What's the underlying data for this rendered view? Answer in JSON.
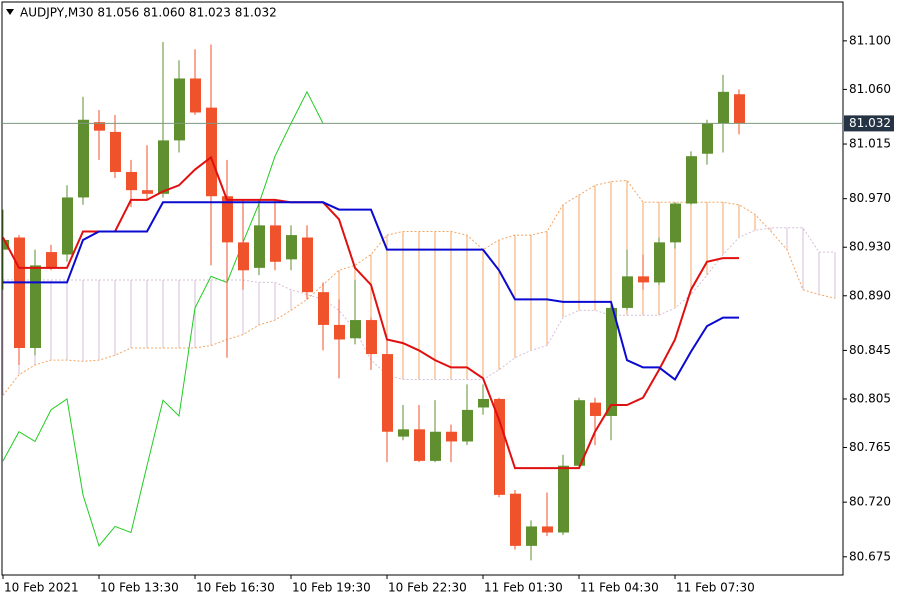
{
  "chart_data": {
    "type": "candlestick",
    "title": "AUDJPY,M30  81.056 81.060 81.023 81.032",
    "categories": [
      "10 Feb 2021",
      null,
      null,
      null,
      null,
      null,
      "10 Feb 13:30",
      null,
      null,
      null,
      null,
      null,
      "10 Feb 16:30",
      null,
      null,
      null,
      null,
      null,
      "10 Feb 19:30",
      null,
      null,
      null,
      null,
      null,
      "10 Feb 22:30",
      null,
      null,
      null,
      null,
      null,
      "11 Feb 01:30",
      null,
      null,
      null,
      null,
      null,
      "11 Feb 04:30",
      null,
      null,
      null,
      null,
      null,
      "11 Feb 07:30",
      null,
      null,
      null,
      null,
      null,
      null,
      null,
      null,
      null,
      null
    ],
    "open": [
      80.928,
      80.938,
      80.847,
      80.926,
      80.924,
      80.971,
      81.033,
      81.025,
      80.992,
      80.977,
      80.974,
      81.018,
      81.069,
      81.045,
      80.972,
      80.934,
      80.913,
      80.948,
      80.92,
      80.938,
      80.893,
      80.866,
      80.855,
      80.87,
      80.842,
      80.774,
      80.78,
      80.754,
      80.778,
      80.77,
      80.798,
      80.805,
      80.727,
      80.684,
      80.7,
      80.695,
      80.75,
      80.802,
      80.791,
      80.88,
      80.906,
      80.901,
      80.934,
      80.966,
      81.007,
      81.032,
      81.056,
      null,
      null,
      null,
      null,
      null,
      null
    ],
    "high": [
      80.961,
      80.94,
      80.928,
      80.932,
      80.981,
      81.054,
      81.043,
      81.039,
      81.002,
      81.014,
      81.099,
      81.084,
      81.093,
      81.097,
      81.002,
      80.969,
      80.969,
      80.969,
      80.948,
      80.948,
      80.901,
      80.887,
      80.903,
      80.872,
      80.854,
      80.8,
      80.8,
      80.804,
      80.784,
      80.817,
      80.817,
      80.806,
      80.73,
      80.705,
      80.728,
      80.759,
      80.806,
      80.806,
      80.882,
      80.928,
      80.924,
      80.938,
      80.967,
      81.009,
      81.035,
      81.072,
      81.06,
      null,
      null,
      null,
      null,
      null,
      null
    ],
    "low": [
      80.895,
      80.833,
      80.841,
      80.911,
      80.918,
      80.965,
      81.002,
      80.987,
      80.963,
      80.969,
      80.971,
      81.008,
      81.039,
      80.915,
      80.839,
      80.895,
      80.907,
      80.911,
      80.911,
      80.887,
      80.845,
      80.822,
      80.85,
      80.829,
      80.753,
      80.771,
      80.753,
      80.753,
      80.753,
      80.767,
      80.792,
      80.724,
      80.681,
      80.672,
      80.692,
      80.693,
      80.748,
      80.767,
      80.771,
      80.878,
      80.895,
      80.899,
      80.929,
      80.965,
      80.998,
      81.008,
      81.023,
      null,
      null,
      null,
      null,
      null,
      null
    ],
    "close": [
      80.936,
      80.847,
      80.915,
      80.913,
      80.971,
      81.035,
      81.026,
      80.992,
      80.977,
      80.974,
      81.018,
      81.069,
      81.041,
      80.972,
      80.934,
      80.911,
      80.948,
      80.918,
      80.94,
      80.893,
      80.866,
      80.854,
      80.87,
      80.842,
      80.778,
      80.78,
      80.754,
      80.778,
      80.77,
      80.796,
      80.805,
      80.726,
      80.684,
      80.7,
      80.695,
      80.75,
      80.804,
      80.791,
      80.88,
      80.906,
      80.901,
      80.934,
      80.966,
      81.005,
      81.032,
      81.058,
      81.032,
      null,
      null,
      null,
      null,
      null,
      null
    ],
    "up_color": "#5f8f2f",
    "down_color": "#f0522b",
    "lines": [
      {
        "color": "#e01010",
        "values": [
          80.938,
          80.913,
          80.913,
          80.913,
          80.913,
          80.943,
          80.943,
          80.943,
          80.969,
          80.969,
          80.976,
          80.981,
          80.994,
          81.004,
          80.969,
          80.969,
          80.969,
          80.969,
          80.967,
          80.967,
          80.967,
          80.953,
          80.913,
          80.899,
          80.854,
          80.851,
          80.845,
          80.837,
          80.831,
          80.831,
          80.822,
          80.788,
          80.748,
          80.748,
          80.748,
          80.748,
          80.748,
          80.778,
          80.8,
          80.8,
          80.806,
          80.829,
          80.854,
          80.895,
          80.918,
          80.921,
          80.921,
          null,
          null,
          null,
          null,
          null,
          null
        ]
      },
      {
        "color": "#0a0ad0",
        "values": [
          80.901,
          80.901,
          80.901,
          80.901,
          80.901,
          80.936,
          80.943,
          80.943,
          80.943,
          80.943,
          80.967,
          80.967,
          80.967,
          80.967,
          80.967,
          80.967,
          80.967,
          80.967,
          80.967,
          80.967,
          80.967,
          80.961,
          80.961,
          80.961,
          80.928,
          80.928,
          80.928,
          80.928,
          80.928,
          80.928,
          80.928,
          80.911,
          80.887,
          80.887,
          80.887,
          80.885,
          80.885,
          80.885,
          80.885,
          80.837,
          80.831,
          80.831,
          80.821,
          80.844,
          80.865,
          80.872,
          80.872,
          null,
          null,
          null,
          null,
          null,
          null
        ]
      }
    ],
    "chikou_shift": 26,
    "chikou_color": "#22cc22",
    "cloud": {
      "span_a": [
        80.808,
        80.825,
        80.833,
        80.837,
        80.837,
        80.836,
        80.837,
        80.841,
        80.847,
        80.847,
        80.847,
        80.847,
        80.847,
        80.849,
        80.854,
        80.858,
        80.866,
        80.87,
        80.878,
        80.887,
        80.899,
        80.911,
        80.915,
        80.924,
        80.94,
        80.943,
        80.943,
        80.943,
        80.943,
        80.94,
        80.928,
        80.936,
        80.94,
        80.94,
        80.943,
        80.965,
        80.973,
        80.981,
        80.984,
        80.985,
        80.967,
        80.967,
        80.967,
        80.967,
        80.967,
        80.967,
        80.965,
        80.957,
        80.943,
        80.928,
        80.895,
        80.891,
        80.888
      ],
      "span_b": [
        80.903,
        80.903,
        80.903,
        80.903,
        80.903,
        80.903,
        80.903,
        80.903,
        80.903,
        80.903,
        80.903,
        80.903,
        80.903,
        80.903,
        80.903,
        80.903,
        80.901,
        80.901,
        80.895,
        80.891,
        80.887,
        80.878,
        80.862,
        80.837,
        80.825,
        80.821,
        80.821,
        80.821,
        80.821,
        80.821,
        80.821,
        80.829,
        80.839,
        80.845,
        80.849,
        80.872,
        80.878,
        80.878,
        80.874,
        80.874,
        80.874,
        80.874,
        80.88,
        80.891,
        80.907,
        80.924,
        80.938,
        80.944,
        80.946,
        80.946,
        80.946,
        80.926,
        80.926
      ],
      "up_color": "#f4a460",
      "down_color": "#d8bfd8"
    },
    "last_price": 81.032,
    "ylim": [
      80.66,
      81.132
    ],
    "yticks": [
      {
        "value": 81.1,
        "label": "81.100"
      },
      {
        "value": 81.06,
        "label": "81.060"
      },
      81.015,
      {
        "value": 80.97,
        "label": "80.970"
      },
      {
        "value": 80.93,
        "label": "80.930"
      },
      {
        "value": 80.89,
        "label": "80.890"
      },
      80.845,
      80.805,
      80.765,
      {
        "value": 80.72,
        "label": "80.720"
      },
      80.675
    ]
  }
}
